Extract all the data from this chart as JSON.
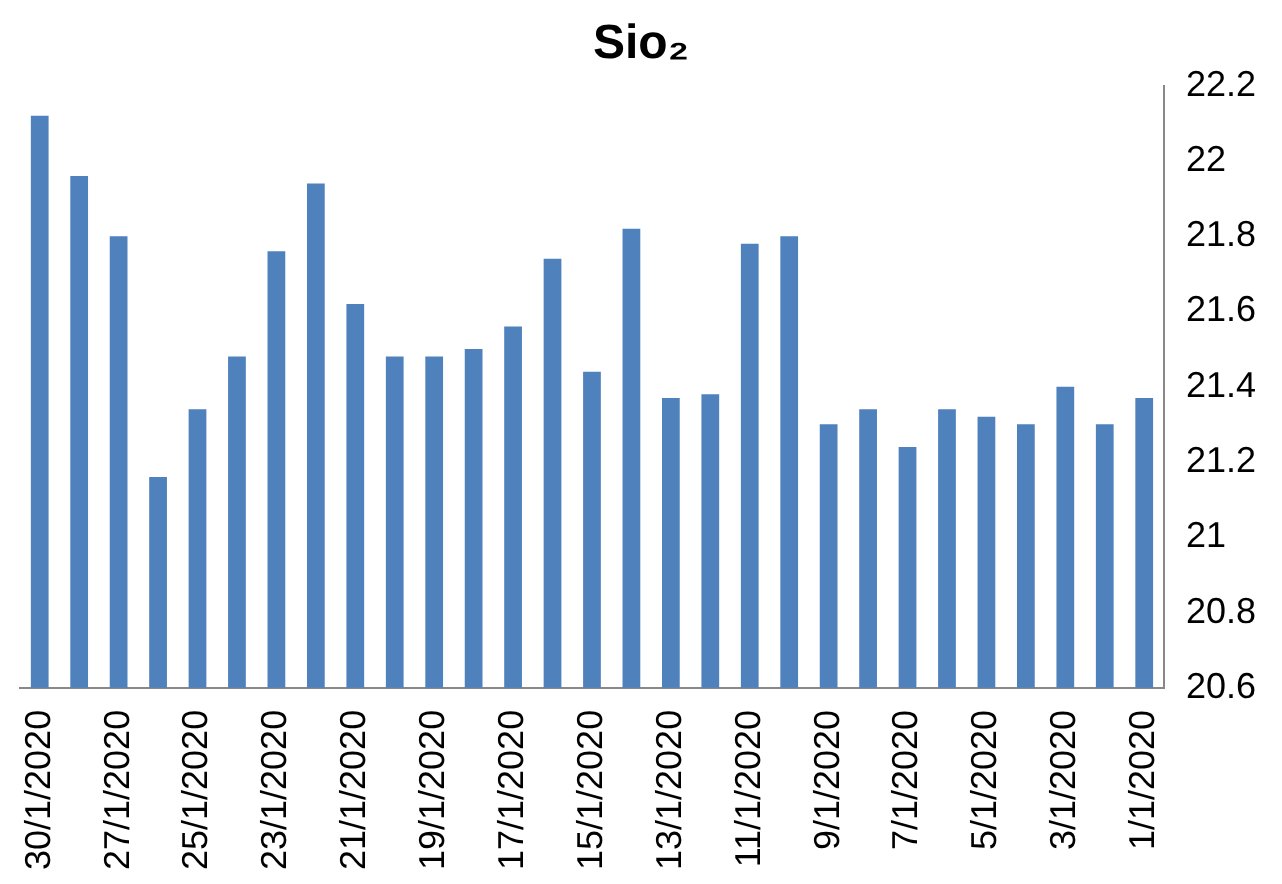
{
  "chart_data": {
    "type": "bar",
    "title": "Sio₂",
    "categories": [
      "30/1/2020",
      null,
      "27/1/2020",
      null,
      "25/1/2020",
      null,
      "23/1/2020",
      null,
      "21/1/2020",
      null,
      "19/1/2020",
      null,
      "17/1/2020",
      null,
      "15/1/2020",
      null,
      "13/1/2020",
      null,
      "11/1/2020",
      null,
      "9/1/2020",
      null,
      "7/1/2020",
      null,
      "5/1/2020",
      null,
      "3/1/2020",
      null,
      "1/1/2020"
    ],
    "values": [
      22.12,
      21.96,
      21.8,
      21.16,
      21.34,
      21.48,
      21.76,
      21.94,
      21.62,
      21.48,
      21.48,
      21.5,
      21.56,
      21.74,
      21.44,
      21.82,
      21.37,
      21.38,
      21.78,
      21.8,
      21.3,
      21.34,
      21.24,
      21.34,
      21.32,
      21.3,
      21.4,
      21.3,
      21.37
    ],
    "color": "#4f81bd",
    "ylim": [
      20.6,
      22.2
    ],
    "yticks": [
      20.6,
      20.8,
      21,
      21.2,
      21.4,
      21.6,
      21.8,
      22,
      22.2
    ],
    "grid": false
  }
}
